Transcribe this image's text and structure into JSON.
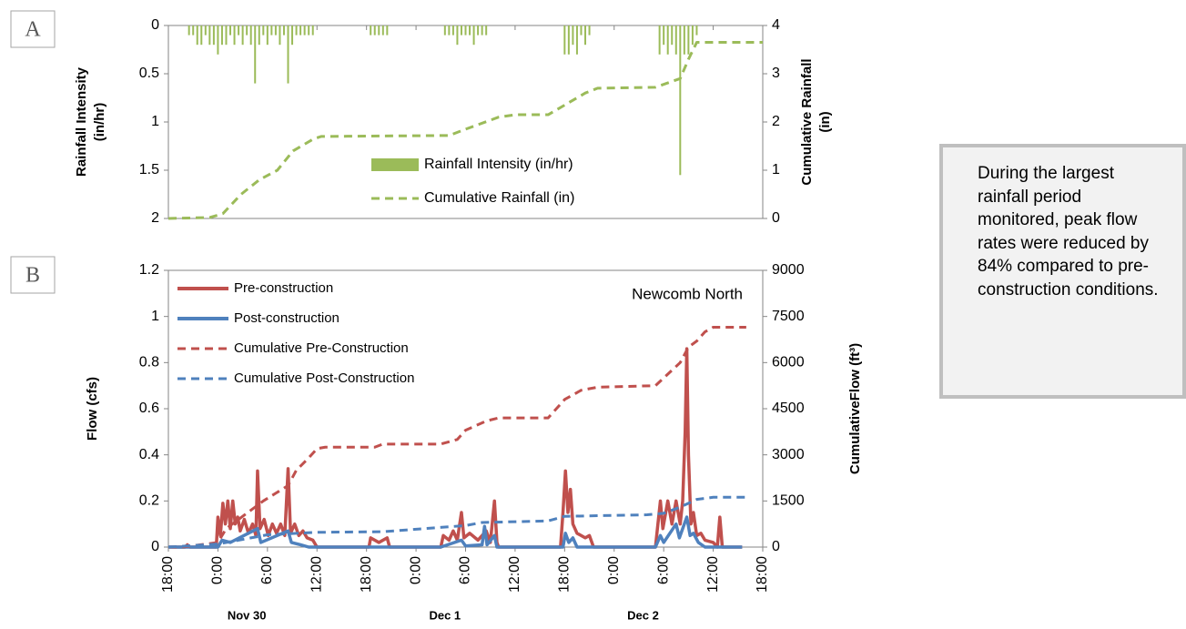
{
  "chart_data": [
    {
      "type": "bar",
      "panel": "A",
      "ylabel": [
        "Rainfall Intensity",
        "(in/hr)"
      ],
      "y2label": [
        "Cumulative Rainfall",
        "(in)"
      ],
      "xlim": [
        0,
        72
      ],
      "xticks": [
        0,
        6,
        12,
        18,
        24,
        30,
        36,
        42,
        48,
        54,
        60,
        66,
        72
      ],
      "ylim": [
        2,
        0
      ],
      "yticks": [
        0,
        0.5,
        1,
        1.5,
        2
      ],
      "y2lim": [
        0,
        4
      ],
      "y2ticks": [
        0,
        1,
        2,
        3,
        4
      ],
      "legend": "lower center",
      "series": [
        {
          "name": "Rainfall Intensity (in/hr)",
          "type": "bar",
          "color": "#9bbb59",
          "x": [
            2.5,
            3,
            3.5,
            4,
            4.5,
            5,
            5.5,
            6,
            6.5,
            7,
            7.5,
            8,
            8.5,
            9,
            9.5,
            10,
            10.5,
            11,
            11.5,
            12,
            12.5,
            13,
            13.5,
            14,
            14.5,
            15,
            15.5,
            16,
            16.5,
            17,
            17.5,
            24.5,
            25,
            25.5,
            26,
            26.5,
            33.5,
            34,
            34.5,
            35,
            35.5,
            36,
            36.5,
            37,
            37.5,
            38,
            38.5,
            48,
            48.5,
            49,
            49.5,
            50,
            50.5,
            51,
            59.5,
            60,
            60.5,
            61,
            61.5,
            62,
            62.5,
            63,
            63.5,
            64
          ],
          "values": [
            0.1,
            0.1,
            0.2,
            0.2,
            0.1,
            0.2,
            0.2,
            0.3,
            0.2,
            0.2,
            0.1,
            0.2,
            0.1,
            0.2,
            0.1,
            0.2,
            0.6,
            0.2,
            0.1,
            0.2,
            0.1,
            0.1,
            0.2,
            0.1,
            0.6,
            0.2,
            0.1,
            0.1,
            0.1,
            0.1,
            0.1,
            0.1,
            0.1,
            0.1,
            0.1,
            0.1,
            0.1,
            0.1,
            0.1,
            0.2,
            0.1,
            0.1,
            0.1,
            0.2,
            0.1,
            0.1,
            0.1,
            0.3,
            0.3,
            0.2,
            0.3,
            0.1,
            0.2,
            0.1,
            0.3,
            0.2,
            0.3,
            0.2,
            0.3,
            1.55,
            0.3,
            0.3,
            0.2,
            0.1
          ]
        },
        {
          "name": "Cumulative Rainfall (in)",
          "type": "line",
          "dash": true,
          "axis": "y2",
          "color": "#9bbb59",
          "x": [
            0,
            5,
            6.6,
            8.8,
            11,
            13.2,
            15.1,
            17.6,
            18.5,
            34,
            36,
            40,
            42,
            46,
            48,
            50.5,
            52,
            59,
            62,
            63,
            64,
            72
          ],
          "values": [
            0,
            0.02,
            0.1,
            0.5,
            0.8,
            1.0,
            1.4,
            1.65,
            1.7,
            1.72,
            1.85,
            2.1,
            2.15,
            2.15,
            2.35,
            2.6,
            2.7,
            2.72,
            2.9,
            3.3,
            3.65,
            3.65
          ]
        }
      ]
    },
    {
      "type": "line",
      "panel": "B",
      "annotation": "Newcomb North",
      "ylabel": [
        "Flow (cfs)"
      ],
      "y2label": [
        "CumulativeFlow (ft³)"
      ],
      "xlim": [
        0,
        72
      ],
      "xticks": [
        {
          "value": 0,
          "label": "18:00"
        },
        {
          "value": 6,
          "label": "0:00"
        },
        {
          "value": 12,
          "label": "6:00"
        },
        {
          "value": 18,
          "label": "12:00"
        },
        {
          "value": 24,
          "label": "18:00"
        },
        {
          "value": 30,
          "label": "0:00"
        },
        {
          "value": 36,
          "label": "6:00"
        },
        {
          "value": 42,
          "label": "12:00"
        },
        {
          "value": 48,
          "label": "18:00"
        },
        {
          "value": 54,
          "label": "0:00"
        },
        {
          "value": 60,
          "label": "6:00"
        },
        {
          "value": 66,
          "label": "12:00"
        },
        {
          "value": 72,
          "label": "18:00"
        }
      ],
      "x_group_labels": [
        {
          "value": 9.5,
          "label": "Nov 30"
        },
        {
          "value": 33.5,
          "label": "Dec 1"
        },
        {
          "value": 57.5,
          "label": "Dec 2"
        }
      ],
      "ylim": [
        0,
        1.2
      ],
      "yticks": [
        0,
        0.2,
        0.4,
        0.6,
        0.8,
        1,
        1.2
      ],
      "y2lim": [
        0,
        9000
      ],
      "y2ticks": [
        0,
        1500,
        3000,
        4500,
        6000,
        7500,
        9000
      ],
      "legend": "upper left",
      "series": [
        {
          "name": "Pre-construction",
          "type": "line",
          "color": "#c0504d",
          "x": [
            0,
            2,
            2.3,
            2.6,
            5.8,
            6,
            6.3,
            6.6,
            6.9,
            7.2,
            7.5,
            7.8,
            8.1,
            8.4,
            8.7,
            9.2,
            9.7,
            10.2,
            10.6,
            10.8,
            11.1,
            11.6,
            12.1,
            12.6,
            13.1,
            13.6,
            14.1,
            14.5,
            14.8,
            15.3,
            15.8,
            16.3,
            16.8,
            17.5,
            18,
            24.3,
            24.5,
            25.5,
            26.5,
            26.8,
            33,
            33.3,
            34,
            34.5,
            35,
            35.5,
            35.8,
            36.5,
            37.5,
            38.5,
            39,
            39.5,
            39.8,
            40,
            47.5,
            47.8,
            48.1,
            48.4,
            48.7,
            49,
            49.5,
            50.5,
            51,
            51.5,
            59,
            59.3,
            59.6,
            59.9,
            60.5,
            61,
            61.5,
            62,
            62.3,
            62.6,
            62.8,
            63,
            63.3,
            63.6,
            64,
            64.5,
            65,
            66,
            66.5,
            66.8,
            67.1,
            69.5
          ],
          "values": [
            0,
            0,
            0.01,
            0,
            0,
            0.13,
            0.05,
            0.19,
            0.1,
            0.2,
            0.08,
            0.2,
            0.1,
            0.13,
            0.07,
            0.12,
            0.06,
            0.1,
            0.05,
            0.33,
            0.08,
            0.12,
            0.05,
            0.1,
            0.06,
            0.1,
            0.05,
            0.34,
            0.06,
            0.1,
            0.05,
            0.07,
            0.04,
            0.03,
            0,
            0,
            0.04,
            0.02,
            0.04,
            0,
            0,
            0.05,
            0.03,
            0.07,
            0.03,
            0.15,
            0.04,
            0.06,
            0.03,
            0.07,
            0.02,
            0.2,
            0.02,
            0,
            0,
            0.15,
            0.33,
            0.15,
            0.25,
            0.1,
            0.06,
            0.04,
            0.05,
            0,
            0,
            0.1,
            0.2,
            0.08,
            0.2,
            0.1,
            0.2,
            0.1,
            0.2,
            0.5,
            0.86,
            0.4,
            0.1,
            0.15,
            0.05,
            0.06,
            0.03,
            0.02,
            0,
            0.13,
            0,
            0
          ]
        },
        {
          "name": "Post-construction",
          "type": "line",
          "color": "#4f81bd",
          "x": [
            0,
            6,
            6.5,
            7.5,
            10.8,
            11.2,
            14.5,
            14.9,
            16,
            17,
            33,
            35.5,
            36,
            38,
            38.3,
            38.6,
            39.5,
            39.8,
            47.8,
            48.1,
            48.5,
            49,
            49.5,
            59,
            59.6,
            60,
            61.5,
            61.9,
            62.8,
            63.2,
            63.6,
            64.2,
            65,
            69.5
          ],
          "values": [
            0,
            0,
            0.03,
            0.02,
            0.08,
            0.02,
            0.07,
            0.02,
            0.01,
            0,
            0,
            0.03,
            0.005,
            0.01,
            0.09,
            0.01,
            0.05,
            0,
            0,
            0.06,
            0.02,
            0.04,
            0,
            0,
            0.05,
            0.02,
            0.1,
            0.04,
            0.13,
            0.05,
            0.06,
            0.02,
            0,
            0
          ]
        },
        {
          "name": "Cumulative Pre-Construction",
          "type": "line",
          "dash": true,
          "axis": "y2",
          "color": "#c0504d",
          "x": [
            0,
            2,
            6,
            7,
            9,
            10,
            11.5,
            13,
            14.5,
            15.5,
            17,
            18,
            19,
            25,
            26,
            33,
            35,
            36,
            38.5,
            40,
            46,
            47,
            48,
            50,
            52,
            59,
            60,
            62,
            63,
            64,
            65,
            66,
            70
          ],
          "values": [
            0,
            10,
            150,
            600,
            1000,
            1200,
            1500,
            1750,
            2000,
            2500,
            2900,
            3200,
            3250,
            3250,
            3350,
            3350,
            3500,
            3800,
            4100,
            4200,
            4200,
            4500,
            4800,
            5100,
            5200,
            5250,
            5500,
            6000,
            6500,
            6700,
            7000,
            7150,
            7150
          ]
        },
        {
          "name": "Cumulative Post-Construction",
          "type": "line",
          "dash": true,
          "axis": "y2",
          "color": "#4f81bd",
          "x": [
            0,
            6,
            12,
            18,
            26,
            36,
            38,
            46,
            48,
            58,
            60,
            62,
            64,
            66,
            70
          ],
          "values": [
            0,
            100,
            400,
            480,
            500,
            700,
            800,
            850,
            1000,
            1050,
            1100,
            1300,
            1550,
            1620,
            1620
          ]
        }
      ]
    }
  ],
  "note": "During the largest rainfall period monitored, peak flow rates were reduced by 84% compared to pre-construction conditions."
}
